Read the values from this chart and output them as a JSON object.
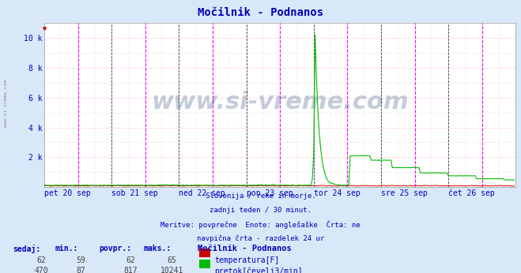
{
  "title": "Močilnik - Podnanos",
  "bg_color": "#d8e8f8",
  "plot_bg_color": "#ffffff",
  "y_max": 11000,
  "y_ticks": [
    0,
    2000,
    4000,
    6000,
    8000,
    10000
  ],
  "y_tick_labels": [
    "",
    "2 k",
    "4 k",
    "6 k",
    "8 k",
    "10 k"
  ],
  "x_labels": [
    "pet 20 sep",
    "sob 21 sep",
    "ned 22 sep",
    "pon 23 sep",
    "tor 24 sep",
    "sre 25 sep",
    "čet 26 sep"
  ],
  "temp_color": "#cc0000",
  "flow_color": "#00bb00",
  "vline_magenta": "#ff00ff",
  "vline_black": "#333333",
  "temp_min": 59,
  "temp_max": 65,
  "temp_avg": 62,
  "temp_cur": 62,
  "flow_min": 87,
  "flow_max": 10241,
  "flow_avg": 817,
  "flow_cur": 470,
  "subtitle1": "Slovenija / reke in morje.",
  "subtitle2": "zadnji teden / 30 minut.",
  "subtitle3": "Meritve: povprečne  Enote: anglešaške  Črta: ne",
  "subtitle4": "navpična črta - razdelek 24 ur",
  "legend_title": "Močilnik - Podnanos",
  "legend_temp": "temperatura[F]",
  "legend_flow": "pretok[čevelj3/min]",
  "watermark": "www.si-vreme.com",
  "n_days": 7,
  "samples_per_day": 48,
  "spike_day": 4,
  "spike_hour": 0
}
